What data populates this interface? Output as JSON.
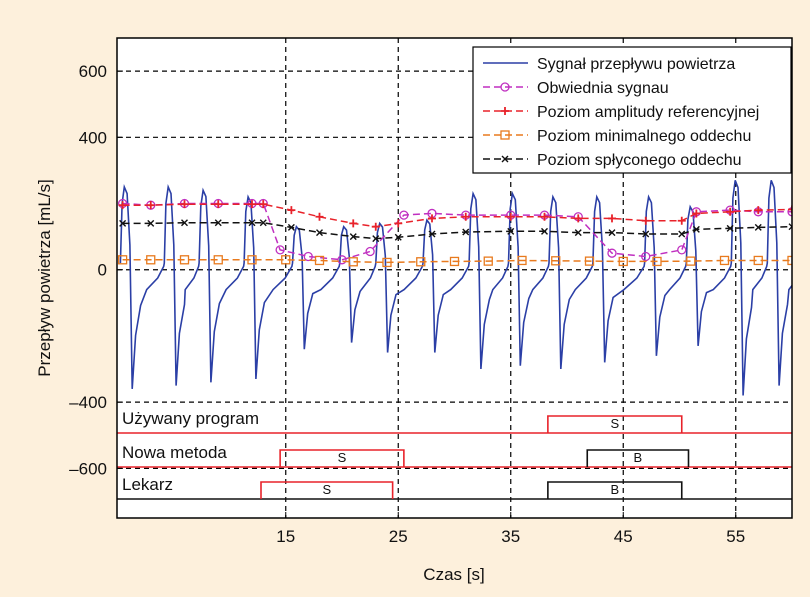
{
  "chart_data": {
    "type": "line",
    "title": "",
    "xlabel": "Czas [s]",
    "ylabel": "Przepływ powietrza [mL/s]",
    "xlim": [
      0,
      60
    ],
    "ylim": [
      -750,
      700
    ],
    "grid": true,
    "legend_position": "top-right",
    "x_ticks": [
      15,
      25,
      35,
      45,
      55
    ],
    "y_ticks": [
      600,
      400,
      0,
      -400,
      -600
    ],
    "x_tick_labels": [
      "15",
      "25",
      "35",
      "45",
      "55"
    ],
    "y_tick_labels": [
      "600",
      "400",
      "0",
      "–400",
      "–600"
    ],
    "series": [
      {
        "name": "Sygnał przepływu powietrza",
        "color": "#2b3fa6",
        "marker": "none",
        "breath_starts": [
          0.3,
          4.2,
          7.3,
          11.3,
          15.6,
          19.8,
          23.0,
          27.2,
          31.3,
          34.8,
          38.4,
          42.3,
          46.9,
          50.6,
          54.6,
          57.8
        ],
        "breath_peaks": [
          250,
          250,
          240,
          220,
          130,
          130,
          140,
          150,
          230,
          230,
          220,
          220,
          220,
          190,
          270,
          270
        ],
        "breath_troughs": [
          -360,
          -350,
          -340,
          -330,
          -240,
          -220,
          -250,
          -250,
          -300,
          -290,
          -300,
          -280,
          -260,
          -230,
          -380,
          -350
        ]
      },
      {
        "name": "Obwiednia sygnau",
        "color": "#c02fc0",
        "marker": "circle",
        "x": [
          0.5,
          3,
          6,
          9,
          12,
          13.0,
          14.5,
          17,
          20,
          22.5,
          25.5,
          28,
          31,
          35,
          38,
          41,
          44,
          47,
          50.2,
          51.5,
          54.5,
          57,
          60
        ],
        "y": [
          200,
          195,
          200,
          200,
          200,
          200,
          60,
          40,
          30,
          55,
          165,
          170,
          165,
          165,
          165,
          160,
          50,
          40,
          60,
          175,
          180,
          175,
          175
        ]
      },
      {
        "name": "Poziom amplitudy referencyjnej",
        "color": "#e8222a",
        "marker": "plus",
        "x": [
          0.5,
          3,
          6,
          9,
          12,
          13.0,
          15.5,
          18,
          21,
          23,
          25,
          28,
          31,
          35,
          38,
          41,
          44,
          47,
          50.2,
          51.5,
          54.5,
          57,
          60
        ],
        "y": [
          195,
          195,
          198,
          198,
          198,
          198,
          180,
          160,
          140,
          130,
          140,
          155,
          160,
          160,
          160,
          155,
          155,
          148,
          148,
          170,
          175,
          180,
          182
        ]
      },
      {
        "name": "Poziom minimalnego oddechu",
        "color": "#e87a1e",
        "marker": "square",
        "x": [
          0.5,
          3,
          6,
          9,
          12,
          15,
          18,
          21,
          24,
          27,
          30,
          33,
          36,
          39,
          42,
          45,
          48,
          51,
          54,
          57,
          60
        ],
        "y": [
          30,
          30,
          30,
          30,
          30,
          30,
          28,
          24,
          22,
          24,
          25,
          26,
          28,
          27,
          26,
          25,
          25,
          26,
          28,
          28,
          28
        ]
      },
      {
        "name": "Poziom spłyconego oddechu",
        "color": "#111111",
        "marker": "x",
        "x": [
          0.5,
          3,
          6,
          9,
          12,
          13.0,
          15.5,
          18,
          21,
          23,
          25,
          28,
          31,
          35,
          38,
          41,
          44,
          47,
          50.2,
          51.5,
          54.5,
          57,
          60
        ],
        "y": [
          140,
          140,
          142,
          142,
          142,
          142,
          128,
          112,
          100,
          94,
          98,
          108,
          114,
          116,
          116,
          112,
          112,
          108,
          108,
          122,
          125,
          128,
          130
        ]
      }
    ],
    "event_tracks": [
      {
        "label": "Używany program",
        "color": "#e8222a",
        "segments": [
          {
            "start": 38.3,
            "end": 50.2,
            "label": "S"
          }
        ]
      },
      {
        "label": "Nowa metoda",
        "color": "#e8222a",
        "secondary_color": "#111111",
        "segments": [
          {
            "start": 14.5,
            "end": 25.5,
            "label": "S",
            "color": "#e8222a"
          },
          {
            "start": 41.8,
            "end": 50.8,
            "label": "B",
            "color": "#111111"
          }
        ]
      },
      {
        "label": "Lekarz",
        "color": "#111111",
        "segments": [
          {
            "start": 12.8,
            "end": 24.5,
            "label": "S",
            "color": "#e8222a"
          },
          {
            "start": 38.3,
            "end": 50.2,
            "label": "B",
            "color": "#111111"
          }
        ]
      }
    ]
  }
}
